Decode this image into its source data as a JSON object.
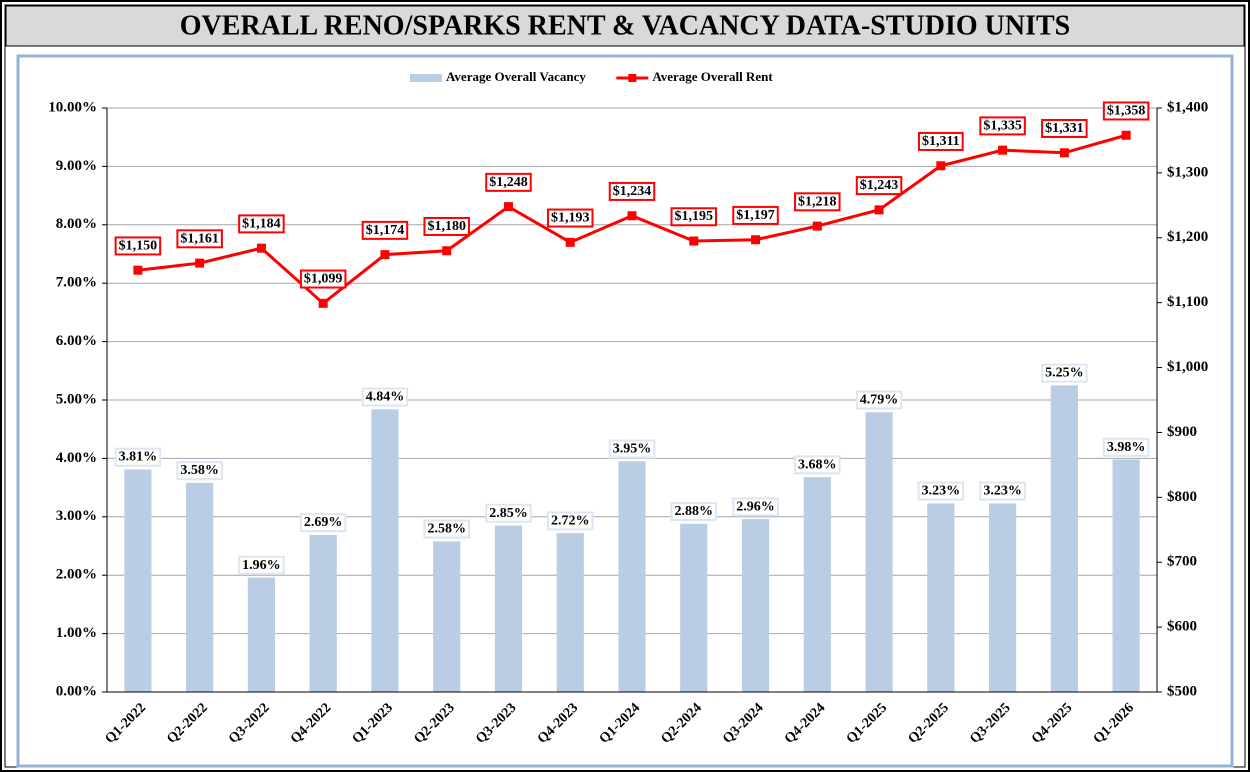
{
  "chart_data": {
    "type": "bar",
    "title": "OVERALL RENO/SPARKS RENT & VACANCY DATA-STUDIO UNITS",
    "categories": [
      "Q1-2022",
      "Q2-2022",
      "Q3-2022",
      "Q4-2022",
      "Q1-2023",
      "Q2-2023",
      "Q3-2023",
      "Q4-2023",
      "Q1-2024",
      "Q2-2024",
      "Q3-2024",
      "Q4-2024",
      "Q1-2025",
      "Q2-2025",
      "Q3-2025",
      "Q4-2025",
      "Q1-2026"
    ],
    "series": [
      {
        "name": "Average Overall Vacancy",
        "type": "bar",
        "color": "#b9cde5",
        "values": [
          3.81,
          3.58,
          1.96,
          2.69,
          4.84,
          2.58,
          2.85,
          2.72,
          3.95,
          2.88,
          2.96,
          3.68,
          4.79,
          3.23,
          3.23,
          5.25,
          3.98
        ],
        "value_labels": [
          "3.81%",
          "3.58%",
          "1.96%",
          "2.69%",
          "4.84%",
          "2.58%",
          "2.85%",
          "2.72%",
          "3.95%",
          "2.88%",
          "2.96%",
          "3.68%",
          "4.79%",
          "3.23%",
          "3.23%",
          "5.25%",
          "3.98%"
        ]
      },
      {
        "name": "Average Overall Rent",
        "type": "line",
        "axis": "y2",
        "color": "#ff0000",
        "values": [
          1150,
          1161,
          1184,
          1099,
          1174,
          1180,
          1248,
          1193,
          1234,
          1195,
          1197,
          1218,
          1243,
          1311,
          1335,
          1331,
          1358
        ],
        "value_labels": [
          "$1,150",
          "$1,161",
          "$1,184",
          "$1,099",
          "$1,174",
          "$1,180",
          "$1,248",
          "$1,193",
          "$1,234",
          "$1,195",
          "$1,197",
          "$1,218",
          "$1,243",
          "$1,311",
          "$1,335",
          "$1,331",
          "$1,358"
        ]
      }
    ],
    "ylim": [
      0,
      10
    ],
    "yticks": [
      {
        "value": 0,
        "label": "0.00%"
      },
      {
        "value": 1,
        "label": "1.00%"
      },
      {
        "value": 2,
        "label": "2.00%"
      },
      {
        "value": 3,
        "label": "3.00%"
      },
      {
        "value": 4,
        "label": "4.00%"
      },
      {
        "value": 5,
        "label": "5.00%"
      },
      {
        "value": 6,
        "label": "6.00%"
      },
      {
        "value": 7,
        "label": "7.00%"
      },
      {
        "value": 8,
        "label": "8.00%"
      },
      {
        "value": 9,
        "label": "9.00%"
      },
      {
        "value": 10,
        "label": "10.00%"
      }
    ],
    "y2lim": [
      500,
      1400
    ],
    "y2ticks": [
      {
        "value": 500,
        "label": "$500"
      },
      {
        "value": 600,
        "label": "$600"
      },
      {
        "value": 700,
        "label": "$700"
      },
      {
        "value": 800,
        "label": "$800"
      },
      {
        "value": 900,
        "label": "$900"
      },
      {
        "value": 1000,
        "label": "$1,000"
      },
      {
        "value": 1100,
        "label": "$1,100"
      },
      {
        "value": 1200,
        "label": "$1,200"
      },
      {
        "value": 1300,
        "label": "$1,300"
      },
      {
        "value": 1400,
        "label": "$1,400"
      }
    ],
    "grid": true,
    "legend": "top"
  }
}
